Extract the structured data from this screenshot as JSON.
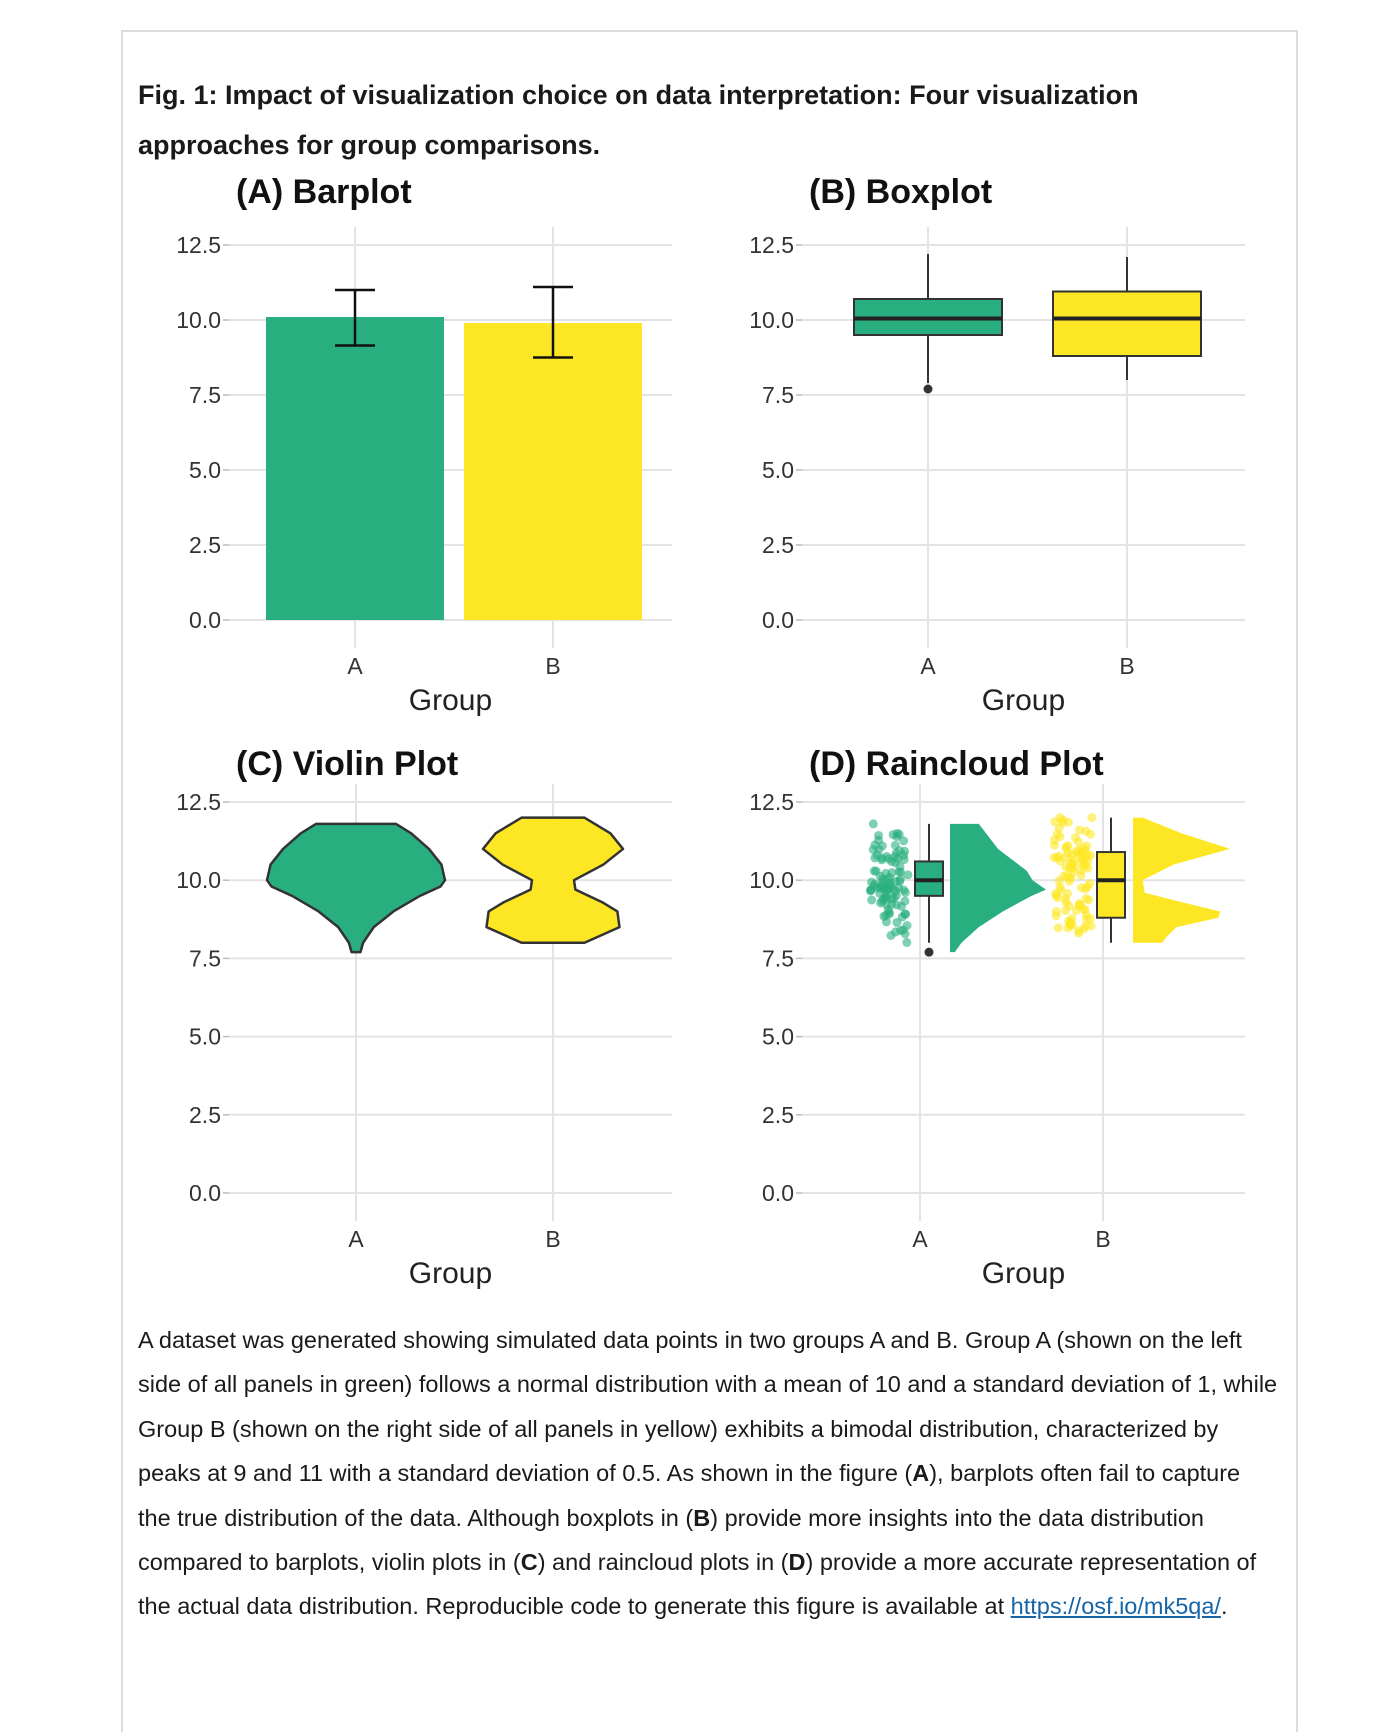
{
  "figure": {
    "title": "Fig. 1: Impact of visualization choice on data interpretation: Four visualization approaches for group comparisons."
  },
  "colors": {
    "A": "#29AF7F",
    "B": "#FDE725",
    "outline": "#333333",
    "grid": "#e3e3e3",
    "link": "#1565a8"
  },
  "chart_data": [
    {
      "type": "bar",
      "title": "(A) Barplot",
      "xlabel": "Group",
      "ylabel": "",
      "categories": [
        "A",
        "B"
      ],
      "values": [
        10.1,
        9.9
      ],
      "error_bars": [
        [
          9.15,
          11.0
        ],
        [
          8.75,
          11.1
        ]
      ],
      "ylim": [
        0,
        12.5
      ],
      "yticks": [
        "0.0",
        "2.5",
        "5.0",
        "7.5",
        "10.0",
        "12.5"
      ],
      "grid": true
    },
    {
      "type": "box",
      "title": "(B) Boxplot",
      "xlabel": "Group",
      "ylabel": "",
      "categories": [
        "A",
        "B"
      ],
      "boxes": [
        {
          "whisker_low": 7.9,
          "q1": 9.5,
          "median": 10.05,
          "q3": 10.7,
          "whisker_high": 12.2,
          "outliers": [
            7.7
          ]
        },
        {
          "whisker_low": 8.0,
          "q1": 8.8,
          "median": 10.05,
          "q3": 10.95,
          "whisker_high": 12.1,
          "outliers": []
        }
      ],
      "ylim": [
        0,
        12.5
      ],
      "yticks": [
        "0.0",
        "2.5",
        "5.0",
        "7.5",
        "10.0",
        "12.5"
      ],
      "grid": true
    },
    {
      "type": "violin",
      "title": "(C) Violin Plot",
      "xlabel": "Group",
      "ylabel": "",
      "categories": [
        "A",
        "B"
      ],
      "density": [
        [
          [
            7.7,
            0.05
          ],
          [
            8.0,
            0.08
          ],
          [
            8.5,
            0.2
          ],
          [
            9.0,
            0.42
          ],
          [
            9.5,
            0.72
          ],
          [
            9.8,
            0.95
          ],
          [
            10.0,
            1.0
          ],
          [
            10.5,
            0.96
          ],
          [
            11.0,
            0.82
          ],
          [
            11.5,
            0.62
          ],
          [
            11.8,
            0.45
          ]
        ],
        [
          [
            8.0,
            0.45
          ],
          [
            8.1,
            0.55
          ],
          [
            8.5,
            0.95
          ],
          [
            9.0,
            0.92
          ],
          [
            9.3,
            0.7
          ],
          [
            9.7,
            0.32
          ],
          [
            10.0,
            0.3
          ],
          [
            10.5,
            0.72
          ],
          [
            11.0,
            1.0
          ],
          [
            11.5,
            0.82
          ],
          [
            12.0,
            0.45
          ]
        ]
      ],
      "ylim": [
        0,
        12.5
      ],
      "yticks": [
        "0.0",
        "2.5",
        "5.0",
        "7.5",
        "10.0",
        "12.5"
      ],
      "grid": true
    },
    {
      "type": "raincloud",
      "title": "(D) Raincloud Plot",
      "xlabel": "Group",
      "ylabel": "",
      "categories": [
        "A",
        "B"
      ],
      "boxes": [
        {
          "whisker_low": 8.0,
          "q1": 9.5,
          "median": 10.0,
          "q3": 10.6,
          "whisker_high": 11.8,
          "outliers": [
            7.7
          ]
        },
        {
          "whisker_low": 8.0,
          "q1": 8.8,
          "median": 10.0,
          "q3": 10.9,
          "whisker_high": 12.0,
          "outliers": []
        }
      ],
      "density": [
        [
          [
            7.7,
            0.05
          ],
          [
            8.0,
            0.12
          ],
          [
            8.5,
            0.3
          ],
          [
            9.0,
            0.55
          ],
          [
            9.5,
            0.85
          ],
          [
            9.7,
            1.0
          ],
          [
            10.0,
            0.86
          ],
          [
            10.3,
            0.8
          ],
          [
            11.0,
            0.5
          ],
          [
            11.8,
            0.3
          ]
        ],
        [
          [
            8.0,
            0.3
          ],
          [
            8.2,
            0.35
          ],
          [
            8.5,
            0.45
          ],
          [
            8.8,
            0.88
          ],
          [
            9.0,
            0.9
          ],
          [
            9.3,
            0.5
          ],
          [
            9.6,
            0.12
          ],
          [
            10.0,
            0.1
          ],
          [
            10.5,
            0.42
          ],
          [
            11.0,
            1.0
          ],
          [
            11.5,
            0.5
          ],
          [
            12.0,
            0.1
          ]
        ]
      ],
      "points_summary": [
        {
          "distribution": "normal",
          "mean": 10,
          "sd": 1,
          "range": [
            7.7,
            11.8
          ]
        },
        {
          "distribution": "bimodal",
          "peaks": [
            9,
            11
          ],
          "sd": 0.5,
          "range": [
            8.0,
            12.0
          ]
        }
      ],
      "ylim": [
        0,
        12.5
      ],
      "yticks": [
        "0.0",
        "2.5",
        "5.0",
        "7.5",
        "10.0",
        "12.5"
      ],
      "grid": true
    }
  ],
  "caption": {
    "t1": "A dataset was generated showing simulated data points in two groups A and B. Group A (shown on the left side of all panels in green) follows a normal distribution with a mean of 10 and a standard deviation of 1, while Group B (shown on the right side of all panels in yellow) exhibits a bimodal distribution, characterized by peaks at 9 and 11 with a standard deviation of 0.5. As shown in the figure (",
    "bA": "A",
    "t2": "), barplots often fail to capture the true distribution of the data. Although boxplots in (",
    "bB": "B",
    "t3": ") provide more insights into the data distribution compared to barplots, violin plots in (",
    "bC": "C",
    "t4": ") and raincloud plots in (",
    "bD": "D",
    "t5": ") provide a more accurate representation of the actual data distribution. Reproducible code to generate this figure is available at ",
    "link": "https://osf.io/mk5qa/",
    "t6": "."
  }
}
